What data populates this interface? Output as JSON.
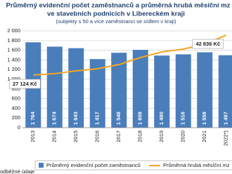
{
  "chart_data": {
    "type": "bar",
    "title": "Průměrný evidenční počet zaměstnanců a průměrná hrubá měsíční mz",
    "title_line2": "ve stavebních podnicích v Libereckém kraji",
    "subtitle": "(subjekty s 50 a více zaměstnanci se sídlem v kraji)",
    "categories": [
      "2013",
      "2014",
      "2015",
      "2016",
      "2017",
      "2018",
      "2019",
      "2020",
      "2021",
      "2022*)"
    ],
    "series": [
      {
        "name": "Průměrný evidenční počet zaměstnanců",
        "type": "bar",
        "color": "#4a7ebb",
        "values": [
          1764,
          1674,
          1643,
          1417,
          1548,
          1608,
          1490,
          1516,
          1558,
          1497
        ],
        "value_labels": [
          "1 764",
          "1 674",
          "1 643",
          "1 417",
          "1 548",
          "1 608",
          "1 490",
          "1 516",
          "1 558",
          "1 497"
        ]
      },
      {
        "name": "Průměrná hrubá měsíční mz",
        "type": "line",
        "axis": "y2",
        "color": "#f5a623",
        "values": [
          27124,
          27700,
          28780,
          29600,
          31260,
          34020,
          36230,
          37330,
          39260,
          42836
        ],
        "value_labels": [
          "27 124 Kč",
          null,
          null,
          null,
          null,
          null,
          null,
          null,
          null,
          "42 836 Kč"
        ]
      }
    ],
    "ylim": [
      0,
      2000
    ],
    "yticks": [
      0,
      200,
      400,
      600,
      800,
      {
        "value": 1000,
        "label": "1 000"
      },
      {
        "value": 1200,
        "label": "1 200"
      },
      {
        "value": 1400,
        "label": "1 400"
      },
      {
        "value": 1600,
        "label": "1 600"
      },
      {
        "value": 1800,
        "label": "1 800"
      },
      {
        "value": 2000,
        "label": "2 000"
      }
    ],
    "y2lim": [
      6450,
      44500
    ],
    "grid": true,
    "legend": "bottom",
    "footnote": "odběžné údaje"
  }
}
